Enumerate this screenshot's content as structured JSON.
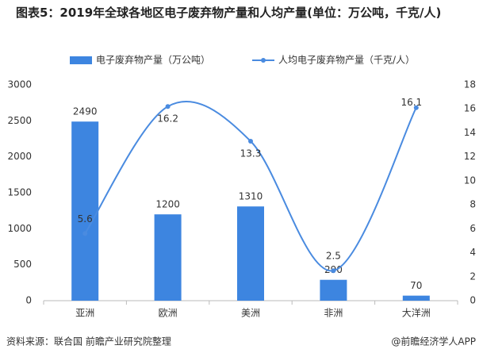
{
  "chart_data": {
    "type": "bar-line",
    "title": "图表5：2019年全球各地区电子废弃物产量和人均产量(单位：万公吨，千克/人)",
    "categories": [
      "亚洲",
      "欧洲",
      "美洲",
      "非洲",
      "大洋洲"
    ],
    "series": [
      {
        "name": "电子废弃物产量（万公吨）",
        "type": "bar",
        "color": "#3d85e0",
        "values": [
          2490,
          1200,
          1310,
          290,
          70
        ]
      },
      {
        "name": "人均电子废弃物产量（千克/人）",
        "type": "line",
        "axis": "y2",
        "color": "#4a8be0",
        "values": [
          5.6,
          16.2,
          13.3,
          2.5,
          16.1
        ]
      }
    ],
    "ylim": [
      0,
      3000
    ],
    "yticks": [
      0,
      500,
      1000,
      1500,
      2000,
      2500,
      3000
    ],
    "y2lim": [
      0,
      18
    ],
    "y2ticks": [
      0,
      2,
      4,
      6,
      8,
      10,
      12,
      14,
      16,
      18
    ],
    "source": "资料来源：联合国 前瞻产业研究院整理",
    "credit": "@前瞻经济学人APP"
  }
}
